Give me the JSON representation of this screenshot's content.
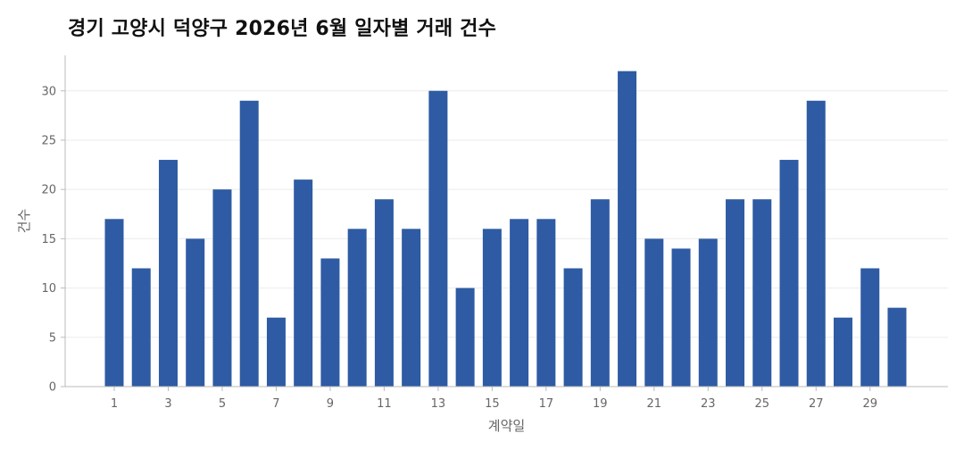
{
  "chart_data": {
    "type": "bar",
    "title": "경기 고양시 덕양구 2026년 6월 일자별 거래 건수",
    "xlabel": "계약일",
    "ylabel": "건수",
    "categories": [
      1,
      2,
      3,
      4,
      5,
      6,
      7,
      8,
      9,
      10,
      11,
      12,
      13,
      14,
      15,
      16,
      17,
      18,
      19,
      20,
      21,
      22,
      23,
      24,
      25,
      26,
      27,
      28,
      29,
      30
    ],
    "values": [
      17,
      12,
      23,
      15,
      20,
      29,
      7,
      21,
      13,
      16,
      19,
      16,
      30,
      10,
      16,
      17,
      17,
      12,
      19,
      32,
      15,
      14,
      15,
      19,
      19,
      23,
      29,
      7,
      12,
      8
    ],
    "x_tick_labels": [
      "1",
      "3",
      "5",
      "7",
      "9",
      "11",
      "13",
      "15",
      "17",
      "19",
      "21",
      "23",
      "25",
      "27",
      "29"
    ],
    "y_ticks": [
      0,
      5,
      10,
      15,
      20,
      25,
      30
    ],
    "ylim": [
      0,
      33.6
    ],
    "bar_color": "#2E5BA3",
    "grid": true,
    "legend": false
  }
}
